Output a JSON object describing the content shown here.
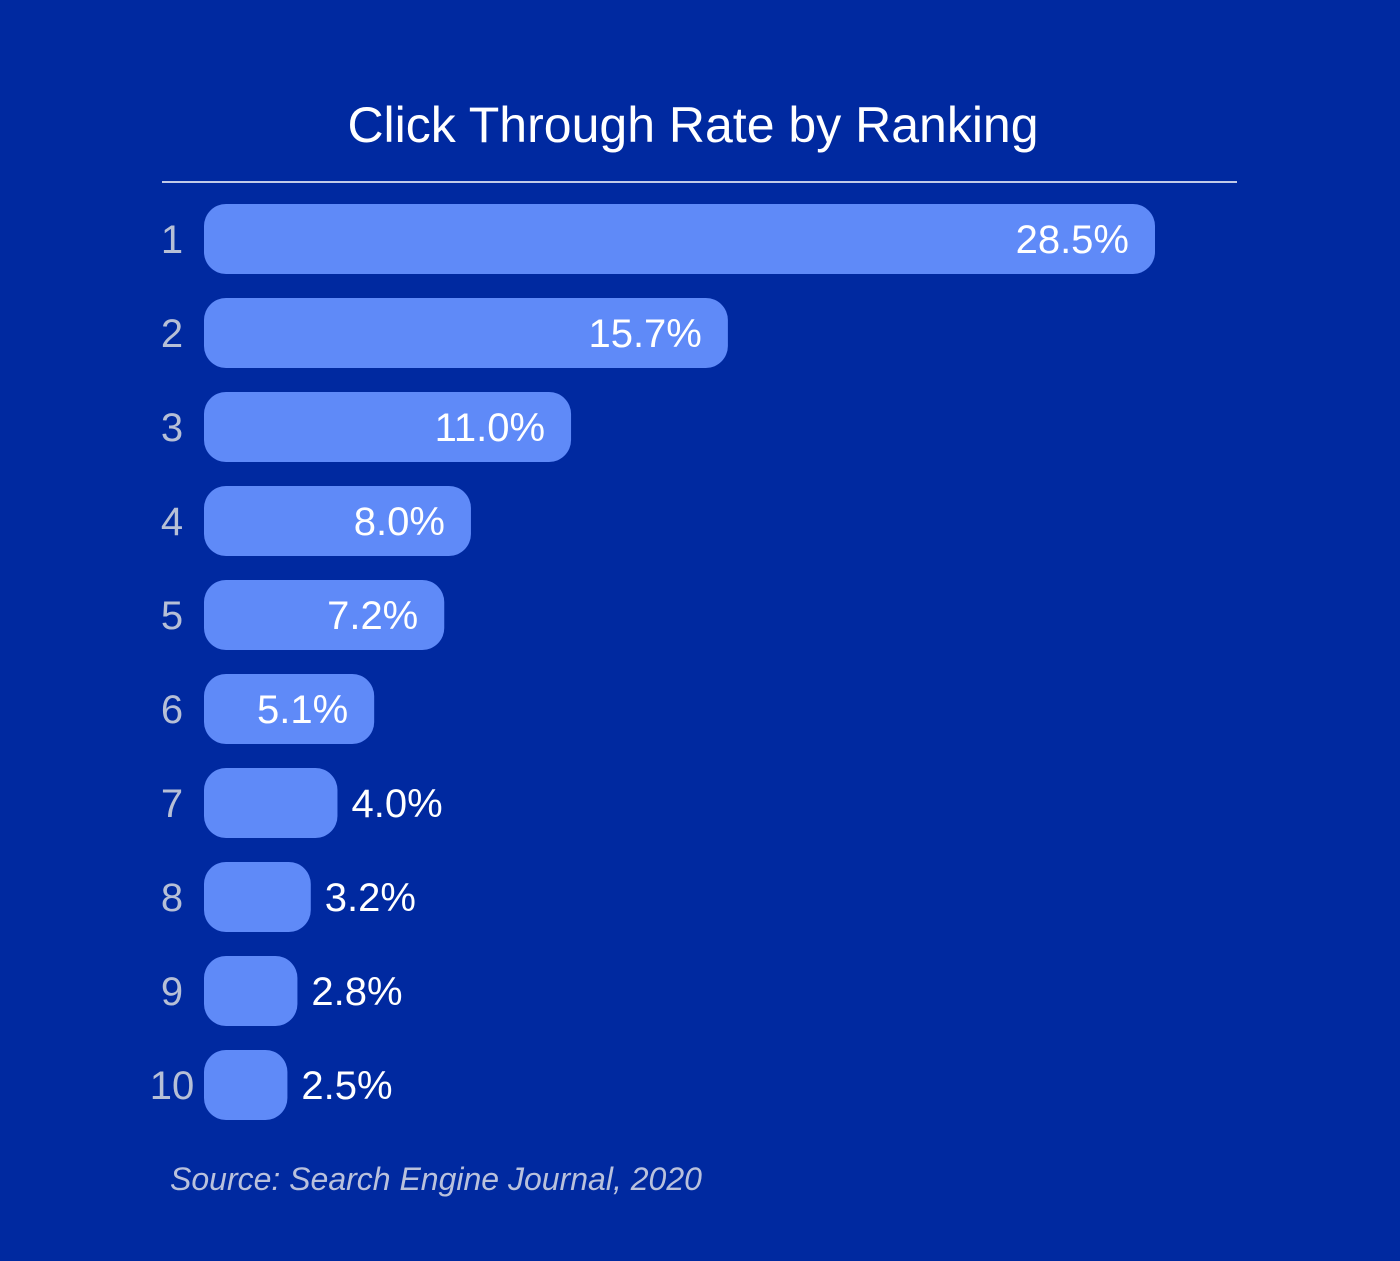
{
  "chart_data": {
    "type": "bar",
    "orientation": "horizontal",
    "title": "Click Through Rate by Ranking",
    "categories": [
      "1",
      "2",
      "3",
      "4",
      "5",
      "6",
      "7",
      "8",
      "9",
      "10"
    ],
    "values": [
      28.5,
      15.7,
      11.0,
      8.0,
      7.2,
      5.1,
      4.0,
      3.2,
      2.8,
      2.5
    ],
    "value_labels": [
      "28.5%",
      "15.7%",
      "11.0%",
      "8.0%",
      "7.2%",
      "5.1%",
      "4.0%",
      "3.2%",
      "2.8%",
      "2.5%"
    ],
    "source": "Source: Search Engine Journal, 2020",
    "colors": {
      "background": "#0029a0",
      "bar": "#5f8af8",
      "title": "#ffffff",
      "rank_label": "#b6bfd6",
      "value_label": "#ffffff",
      "divider": "#ffffff",
      "source": "#b9c1dc"
    }
  }
}
